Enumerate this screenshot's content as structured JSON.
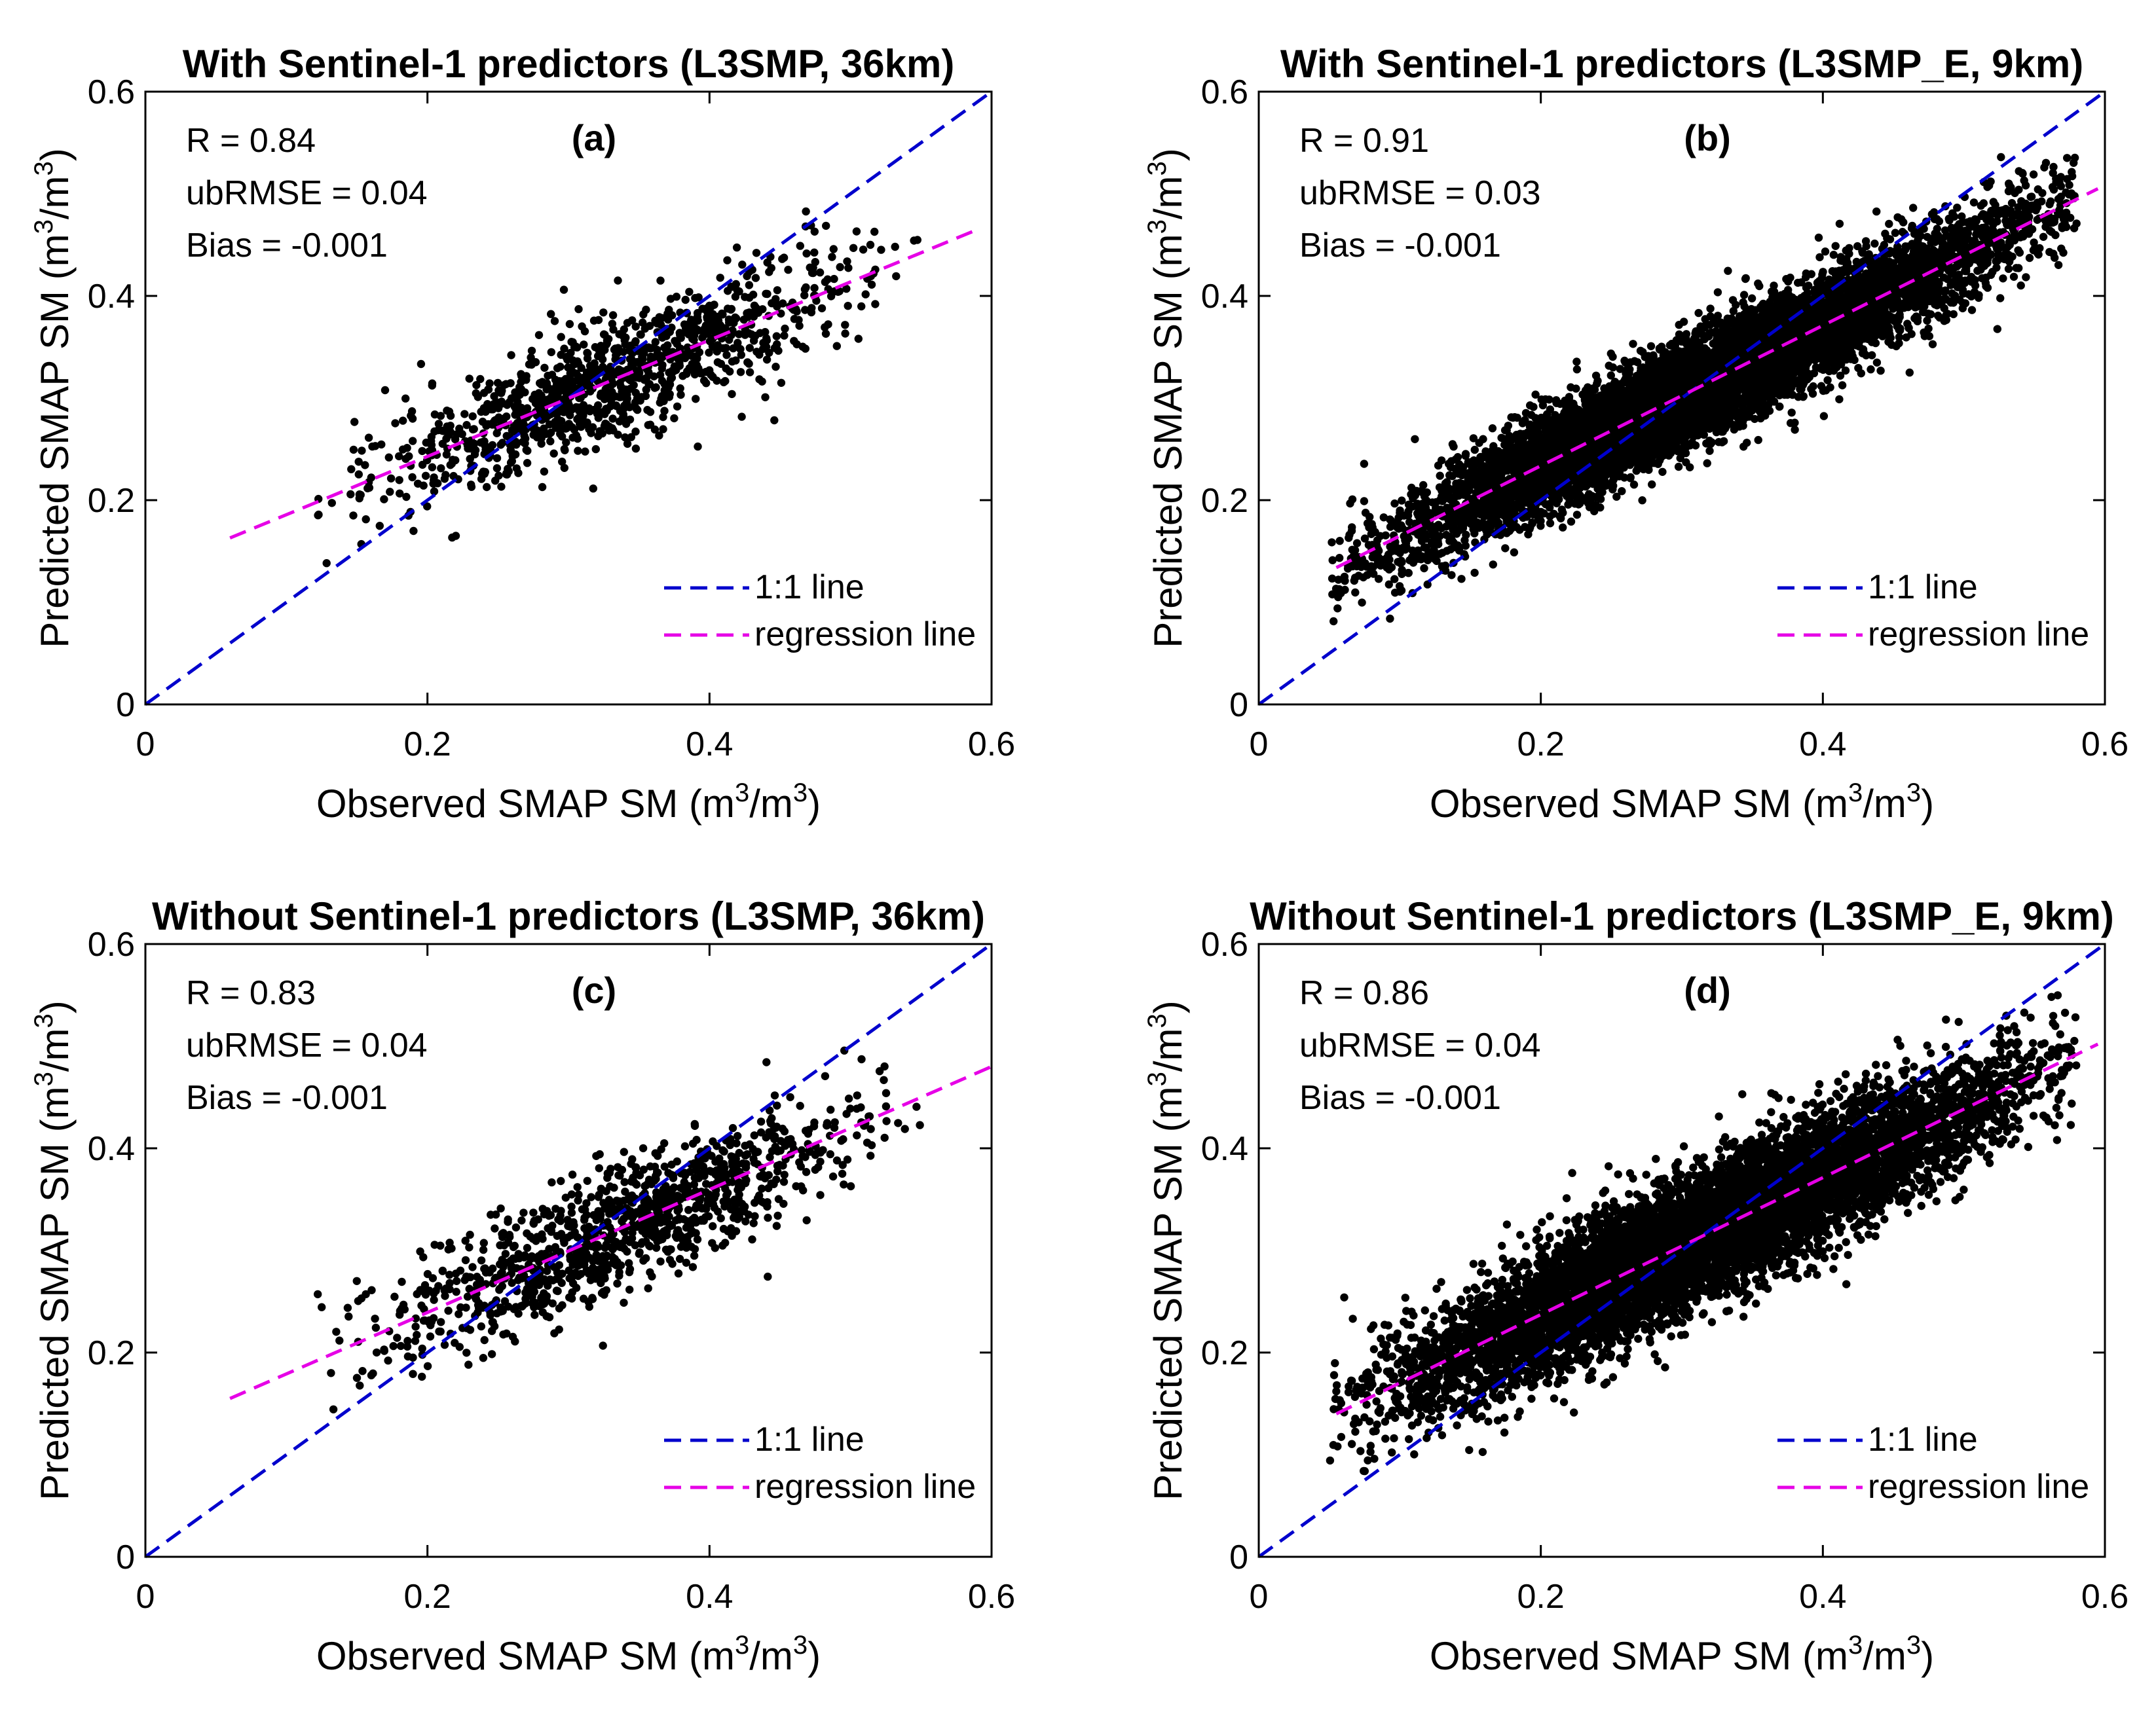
{
  "figure": {
    "x_axis_label_main": "Observed SMAP SM (m",
    "x_axis_label_sup1": "3",
    "x_axis_label_mid": "/m",
    "x_axis_label_sup2": "3",
    "x_axis_label_end": ")",
    "y_axis_label_main": "Predicted SMAP SM (m",
    "y_axis_label_sup1": "3",
    "y_axis_label_mid": "/m",
    "y_axis_label_sup2": "3",
    "y_axis_label_end": ")",
    "legend_one_to_one": "1:1 line",
    "legend_regression": "regression line",
    "colors": {
      "one_to_one": "#0000cc",
      "regression": "#e600e6",
      "points": "#000000"
    }
  },
  "chart_data": [
    {
      "type": "scatter",
      "panel": "(a)",
      "title": "With Sentinel-1 predictors (L3SMP, 36km)",
      "xlabel": "Observed SMAP SM (m3/m3)",
      "ylabel": "Predicted SMAP SM (m3/m3)",
      "xlim": [
        0,
        0.6
      ],
      "ylim": [
        0,
        0.6
      ],
      "xticks": [
        "0",
        "0.2",
        "0.4",
        "0.6"
      ],
      "yticks": [
        "0",
        "0.2",
        "0.4",
        "0.6"
      ],
      "stats": {
        "r": "R = 0.84",
        "ubrmse": "ubRMSE = 0.04",
        "bias": "Bias = -0.001"
      },
      "one_to_one": {
        "x": [
          0,
          0.6
        ],
        "y": [
          0,
          0.6
        ]
      },
      "regression": {
        "x": [
          0.06,
          0.59
        ],
        "y": [
          0.163,
          0.465
        ]
      },
      "points_summary": {
        "count": 1100,
        "x_range": [
          0.12,
          0.55
        ],
        "slope": 0.57,
        "intercept": 0.129,
        "spread": 0.03
      }
    },
    {
      "type": "scatter",
      "panel": "(b)",
      "title": "With Sentinel-1 predictors (L3SMP_E, 9km)",
      "xlabel": "Observed SMAP SM (m3/m3)",
      "ylabel": "Predicted SMAP SM (m3/m3)",
      "xlim": [
        0,
        0.6
      ],
      "ylim": [
        0,
        0.6
      ],
      "xticks": [
        "0",
        "0.2",
        "0.4",
        "0.6"
      ],
      "yticks": [
        "0",
        "0.2",
        "0.4",
        "0.6"
      ],
      "stats": {
        "r": "R = 0.91",
        "ubrmse": "ubRMSE = 0.03",
        "bias": "Bias = -0.001"
      },
      "one_to_one": {
        "x": [
          0,
          0.6
        ],
        "y": [
          0,
          0.6
        ]
      },
      "regression": {
        "x": [
          0.055,
          0.595
        ],
        "y": [
          0.134,
          0.505
        ]
      },
      "points_summary": {
        "count": 8000,
        "x_range": [
          0.05,
          0.58
        ],
        "slope": 0.687,
        "intercept": 0.096,
        "spread": 0.025
      }
    },
    {
      "type": "scatter",
      "panel": "(c)",
      "title": "Without Sentinel-1 predictors (L3SMP, 36km)",
      "xlabel": "Observed SMAP SM (m3/m3)",
      "ylabel": "Predicted SMAP SM (m3/m3)",
      "xlim": [
        0,
        0.6
      ],
      "ylim": [
        0,
        0.6
      ],
      "xticks": [
        "0",
        "0.2",
        "0.4",
        "0.6"
      ],
      "yticks": [
        "0",
        "0.2",
        "0.4",
        "0.6"
      ],
      "stats": {
        "r": "R = 0.83",
        "ubrmse": "ubRMSE = 0.04",
        "bias": "Bias = -0.001"
      },
      "one_to_one": {
        "x": [
          0,
          0.6
        ],
        "y": [
          0,
          0.6
        ]
      },
      "regression": {
        "x": [
          0.06,
          0.6
        ],
        "y": [
          0.155,
          0.48
        ]
      },
      "points_summary": {
        "count": 1100,
        "x_range": [
          0.12,
          0.55
        ],
        "slope": 0.6,
        "intercept": 0.119,
        "spread": 0.031
      }
    },
    {
      "type": "scatter",
      "panel": "(d)",
      "title": "Without Sentinel-1 predictors (L3SMP_E, 9km)",
      "xlabel": "Observed SMAP SM (m3/m3)",
      "ylabel": "Predicted SMAP SM (m3/m3)",
      "xlim": [
        0,
        0.6
      ],
      "ylim": [
        0,
        0.6
      ],
      "xticks": [
        "0",
        "0.2",
        "0.4",
        "0.6"
      ],
      "yticks": [
        "0",
        "0.2",
        "0.4",
        "0.6"
      ],
      "stats": {
        "r": "R = 0.86",
        "ubrmse": "ubRMSE = 0.04",
        "bias": "Bias = -0.001"
      },
      "one_to_one": {
        "x": [
          0,
          0.6
        ],
        "y": [
          0,
          0.6
        ]
      },
      "regression": {
        "x": [
          0.055,
          0.595
        ],
        "y": [
          0.14,
          0.502
        ]
      },
      "points_summary": {
        "count": 8000,
        "x_range": [
          0.05,
          0.58
        ],
        "slope": 0.67,
        "intercept": 0.103,
        "spread": 0.032
      }
    }
  ]
}
